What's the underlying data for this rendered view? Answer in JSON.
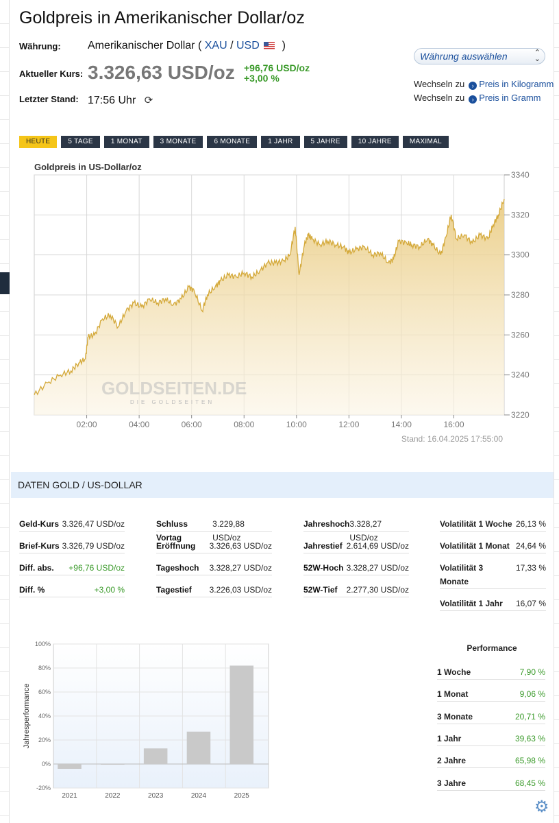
{
  "header": {
    "title": "Goldpreis in Amerikanischer Dollar/oz",
    "waehrung_label": "Währung:",
    "waehrung_name": "Amerikanischer Dollar (",
    "code_xau": "XAU",
    "code_sep": "/",
    "code_usd": "USD",
    "code_close": ")",
    "kurs_label": "Aktueller Kurs:",
    "kurs_value": "3.326,63 USD/oz",
    "change_abs": "+96,76 USD/oz",
    "change_pct": "+3,00 %",
    "stand_label": "Letzter Stand:",
    "stand_value": "17:56 Uhr"
  },
  "currency_select": {
    "placeholder": "Währung auswählen"
  },
  "switch_links": [
    {
      "prefix": "Wechseln zu",
      "label": "Preis in Kilogramm"
    },
    {
      "prefix": "Wechseln zu",
      "label": "Preis in Gramm"
    }
  ],
  "tabs": [
    "HEUTE",
    "5 TAGE",
    "1 MONAT",
    "3 MONATE",
    "6 MONATE",
    "1 JAHR",
    "5 JAHRE",
    "10 JAHRE",
    "MAXIMAL"
  ],
  "colors": {
    "gold_line": "#d4a93a",
    "tab_bg": "#2b3646",
    "tab_active": "#f5c518",
    "positive": "#3a9a2a",
    "link": "#1a4f9c"
  },
  "chart_data": [
    {
      "type": "area",
      "title": "Goldpreis in US-Dollar/oz",
      "watermark": "GOLDSEITEN.DE",
      "watermark_sub": "DIE GOLDSEITEN",
      "stand": "Stand: 16.04.2025 17:55:00",
      "x_ticks": [
        "02:00",
        "04:00",
        "06:00",
        "08:00",
        "10:00",
        "12:00",
        "14:00",
        "16:00"
      ],
      "y_ticks": [
        3220,
        3240,
        3260,
        3280,
        3300,
        3320,
        3340
      ],
      "ylim": [
        3220,
        3340
      ],
      "xlim_hours": [
        0,
        17.92
      ],
      "series": [
        {
          "x": [
            0,
            0.5,
            1,
            1.4,
            1.7,
            1.95,
            2.05,
            2.3,
            2.6,
            2.9,
            3.2,
            3.5,
            3.8,
            4.1,
            4.4,
            4.7,
            5,
            5.3,
            5.6,
            5.9,
            6.1,
            6.4,
            6.6,
            6.9,
            7.1,
            7.4,
            7.7,
            8,
            8.3,
            8.6,
            8.9,
            9.2,
            9.5,
            9.75,
            9.95,
            10.1,
            10.3,
            10.45,
            10.6,
            10.9,
            11.2,
            11.5,
            11.8,
            12,
            12.3,
            12.6,
            12.9,
            13.2,
            13.5,
            13.7,
            13.9,
            14.2,
            14.4,
            14.7,
            15,
            15.2,
            15.5,
            15.7,
            15.9,
            16.1,
            16.4,
            16.7,
            17,
            17.3,
            17.5,
            17.7,
            17.92
          ],
          "y": [
            3230,
            3236,
            3240,
            3242,
            3246,
            3248,
            3259,
            3260,
            3268,
            3270,
            3264,
            3272,
            3276,
            3274,
            3278,
            3276,
            3278,
            3275,
            3278,
            3284,
            3282,
            3272,
            3280,
            3284,
            3287,
            3290,
            3289,
            3291,
            3289,
            3292,
            3296,
            3296,
            3297,
            3300,
            3314,
            3290,
            3305,
            3310,
            3308,
            3305,
            3307,
            3305,
            3304,
            3301,
            3303,
            3304,
            3300,
            3301,
            3296,
            3298,
            3307,
            3306,
            3305,
            3304,
            3308,
            3305,
            3300,
            3309,
            3320,
            3308,
            3310,
            3306,
            3310,
            3308,
            3315,
            3320,
            3328
          ]
        }
      ]
    },
    {
      "type": "bar",
      "ylabel": "Jahresperformance",
      "categories": [
        "2021",
        "2022",
        "2023",
        "2024",
        "2025"
      ],
      "values": [
        -4,
        -0.3,
        13,
        27,
        82
      ],
      "ylim": [
        -20,
        100
      ],
      "y_ticks": [
        "-20%",
        "0%",
        "20%",
        "40%",
        "60%",
        "80%",
        "100%"
      ]
    }
  ],
  "section_title": "DATEN GOLD / US-DOLLAR",
  "data_table": {
    "col1": [
      {
        "k": "Geld-Kurs",
        "v": "3.326,47 USD/oz"
      },
      {
        "k": "Brief-Kurs",
        "v": "3.326,79 USD/oz"
      },
      {
        "k": "Diff. abs.",
        "v": "+96,76 USD/oz",
        "pos": true
      },
      {
        "k": "Diff. %",
        "v": "+3,00 %",
        "pos": true
      }
    ],
    "col2": [
      {
        "k": "Schluss Vortag",
        "v": "3.229,88 USD/oz"
      },
      {
        "k": "Eröffnung",
        "v": "3.326,63 USD/oz"
      },
      {
        "k": "Tageshoch",
        "v": "3.328,27 USD/oz"
      },
      {
        "k": "Tagestief",
        "v": "3.226,03 USD/oz"
      }
    ],
    "col3": [
      {
        "k": "Jahreshoch",
        "v": "3.328,27 USD/oz"
      },
      {
        "k": "Jahrestief",
        "v": "2.614,69 USD/oz"
      },
      {
        "k": "52W-Hoch",
        "v": "3.328,27 USD/oz"
      },
      {
        "k": "52W-Tief",
        "v": "2.277,30 USD/oz"
      }
    ],
    "volatility": [
      {
        "k": "Volatilität 1 Woche",
        "v": "26,13 %"
      },
      {
        "k": "Volatilität 1 Monat",
        "v": "24,64 %"
      },
      {
        "k": "Volatilität 3 Monate",
        "v": "17,33 %"
      },
      {
        "k": "Volatilität 1 Jahr",
        "v": "16,07 %"
      }
    ]
  },
  "performance": {
    "title": "Performance",
    "rows": [
      {
        "k": "1 Woche",
        "v": "7,90 %"
      },
      {
        "k": "1 Monat",
        "v": "9,06 %"
      },
      {
        "k": "3 Monate",
        "v": "20,71 %"
      },
      {
        "k": "1 Jahr",
        "v": "39,63 %"
      },
      {
        "k": "2 Jahre",
        "v": "65,98 %"
      },
      {
        "k": "3 Jahre",
        "v": "68,45 %"
      }
    ]
  }
}
